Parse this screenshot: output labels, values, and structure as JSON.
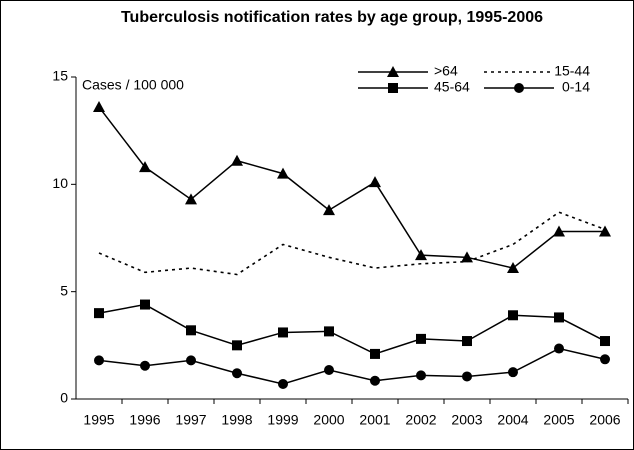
{
  "chart_data": {
    "type": "line",
    "title": "Tuberculosis notification rates by age group, 1995-2006",
    "y_label": "Cases / 100 000",
    "categories": [
      "1995",
      "1996",
      "1997",
      "1998",
      "1999",
      "2000",
      "2001",
      "2002",
      "2003",
      "2004",
      "2005",
      "2006"
    ],
    "series": [
      {
        "name": ">64",
        "color": "#000000",
        "marker": "triangle",
        "dashed": false,
        "values": [
          13.6,
          10.8,
          9.3,
          11.1,
          10.5,
          8.8,
          10.1,
          6.7,
          6.6,
          6.1,
          7.8,
          7.8
        ]
      },
      {
        "name": "15-44",
        "color": "#000000",
        "marker": "none",
        "dashed": true,
        "values": [
          6.8,
          5.9,
          6.1,
          5.8,
          7.2,
          6.6,
          6.1,
          6.3,
          6.4,
          7.2,
          8.7,
          7.9
        ]
      },
      {
        "name": "45-64",
        "color": "#000000",
        "marker": "square",
        "dashed": false,
        "values": [
          4.0,
          4.4,
          3.2,
          2.5,
          3.1,
          3.15,
          2.1,
          2.8,
          2.7,
          3.9,
          3.8,
          2.7
        ]
      },
      {
        "name": "0-14",
        "color": "#000000",
        "marker": "circle",
        "dashed": false,
        "values": [
          1.8,
          1.55,
          1.8,
          1.2,
          0.7,
          1.35,
          0.85,
          1.1,
          1.05,
          1.25,
          2.35,
          1.85
        ]
      }
    ],
    "ylim": [
      0,
      15
    ],
    "yticks": [
      0,
      5,
      10,
      15
    ],
    "grid": false,
    "legend": "upper right"
  }
}
